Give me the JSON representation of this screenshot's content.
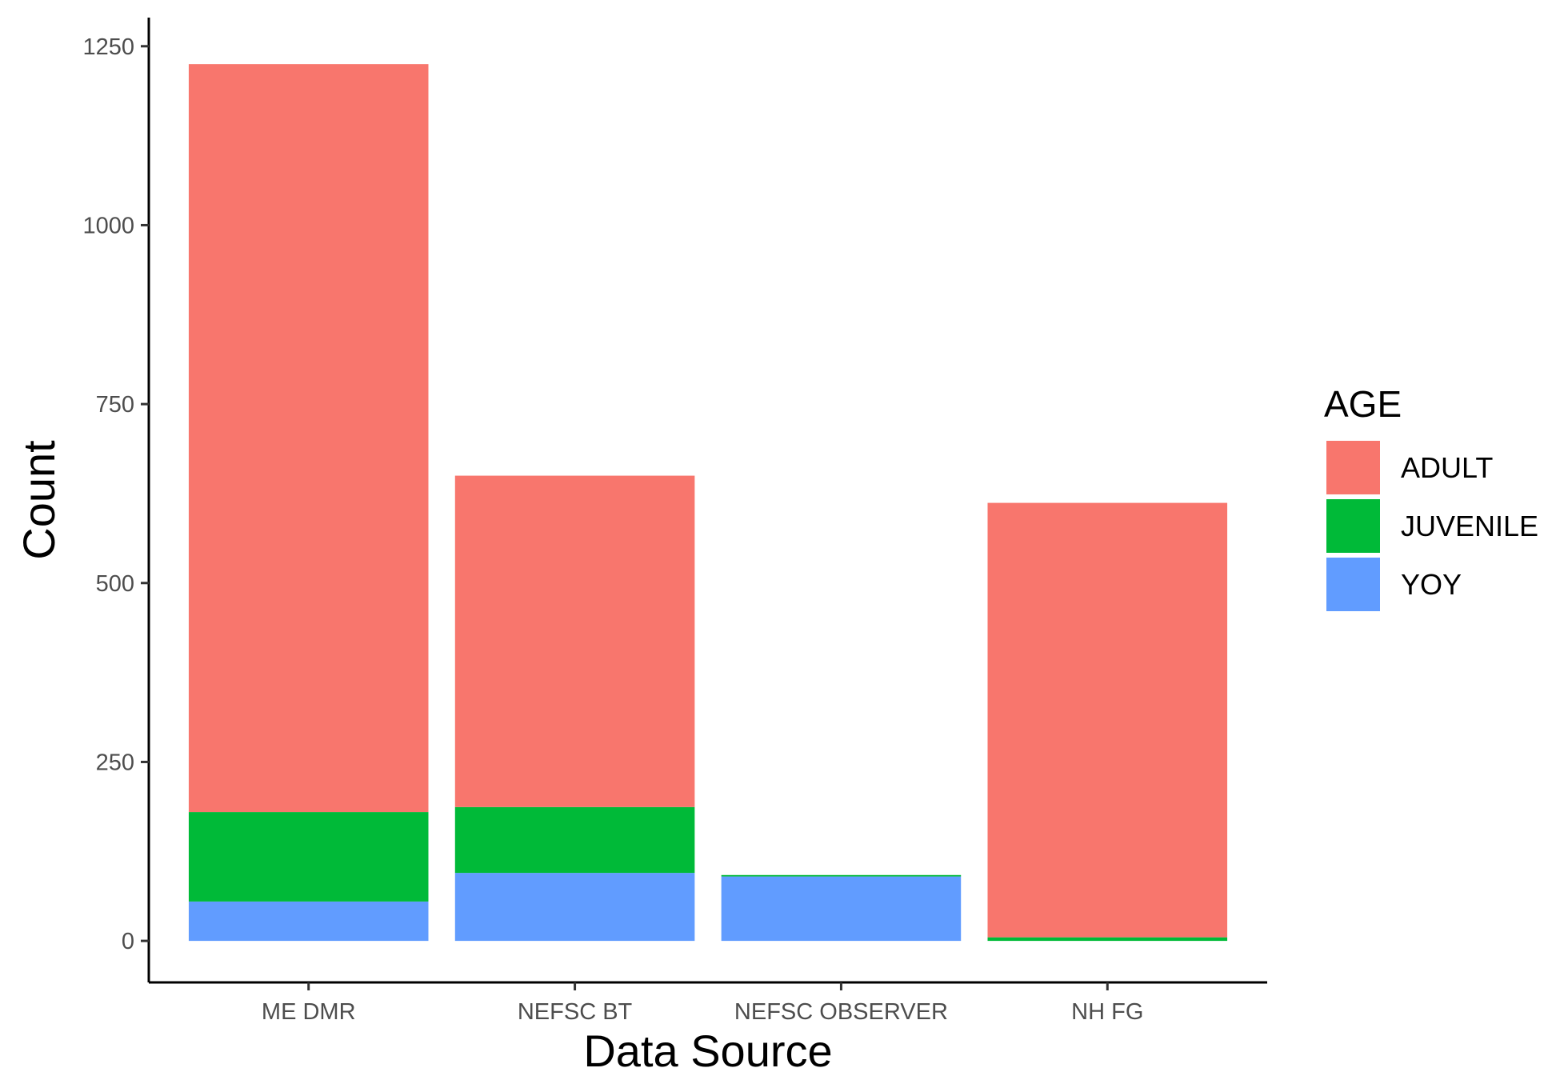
{
  "chart_data": {
    "type": "bar",
    "stacked": true,
    "categories": [
      "ME DMR",
      "NEFSC BT",
      "NEFSC OBSERVER",
      "NH FG"
    ],
    "series": [
      {
        "name": "YOY",
        "color": "#619CFF",
        "values": [
          55,
          95,
          90,
          0
        ]
      },
      {
        "name": "JUVENILE",
        "color": "#00BA38",
        "values": [
          125,
          92,
          2,
          5
        ]
      },
      {
        "name": "ADULT",
        "color": "#F8766D",
        "values": [
          1045,
          463,
          0,
          607
        ]
      }
    ],
    "xlabel": "Data Source",
    "ylabel": "Count",
    "ylim": [
      -58,
      1290
    ],
    "yticks": [
      0,
      250,
      500,
      750,
      1000,
      1250
    ],
    "ytick_labels": [
      "0",
      "250",
      "500",
      "750",
      "1000",
      "1250"
    ],
    "legend": {
      "title": "AGE",
      "position": "right",
      "entries": [
        "ADULT",
        "JUVENILE",
        "YOY"
      ]
    },
    "grid": false
  }
}
